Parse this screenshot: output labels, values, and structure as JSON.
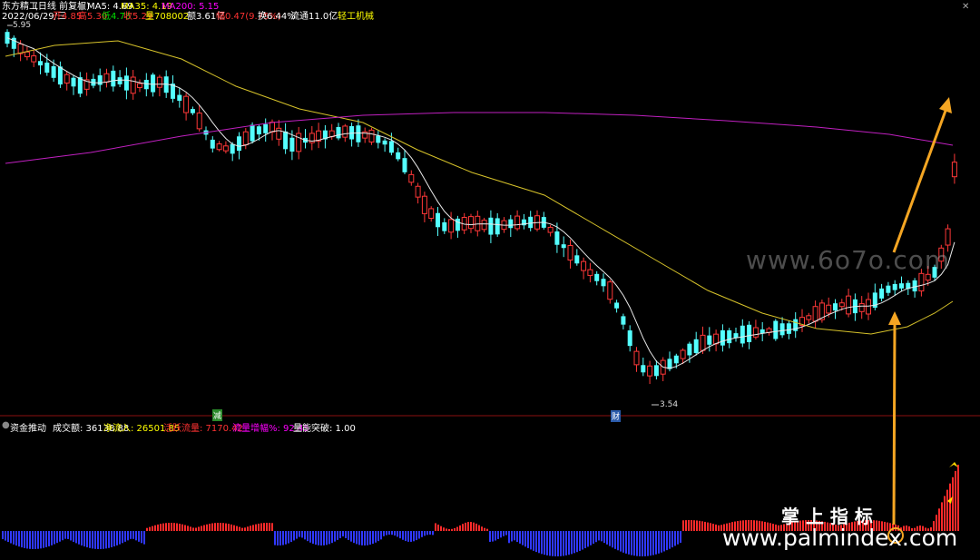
{
  "header": {
    "stock_name": "东方精工",
    "mode": "(日线 前复权)",
    "ma5_label": "MA5: 4.69",
    "ma35_label": "MA35: 4.19",
    "ma200_label": "MA200: 5.15",
    "date": "2022/06/29/三",
    "open": "开4.85",
    "high": "高5.30",
    "low": "低4.78",
    "close": "收5.29",
    "volume": "量708002",
    "amount": "额3.61亿",
    "change": "幅0.47(9.75%)",
    "turnover": "换6.44%",
    "float": "流通11.0亿",
    "sector": "轻工机械",
    "colors": {
      "white": "#ffffff",
      "yellow": "#ffff00",
      "magenta": "#ff00ff",
      "red": "#ff3232",
      "green": "#00e000",
      "cyan": "#54ffff"
    }
  },
  "main_chart": {
    "high_marker": "5.95",
    "low_marker": "3.54",
    "label_jian": "减",
    "label_cai": "财"
  },
  "indicator": {
    "title": "资金推动",
    "volume_label": "成交额: 36138.88",
    "net_inflow_label": "净流入: 26501.85",
    "active_flow_label": "活跃流量: 7170.42",
    "flow_change_label": "流量增幅%: 92.45",
    "breakout_label": "量能突破: 1.00"
  },
  "watermarks": {
    "top": "www.6o7o.com",
    "cn": "掌 上 指 标",
    "bottom": "www.palmindex.com"
  }
}
